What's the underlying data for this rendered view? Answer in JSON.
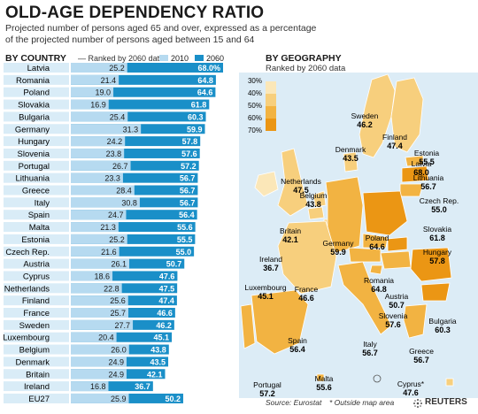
{
  "header": {
    "title": "OLD-AGE DEPENDENCY RATIO",
    "subtitle_line1": "Projected number of persons aged 65 and over, expressed as a percentage",
    "subtitle_line2": "of the projected number of persons aged between 15 and 64"
  },
  "country_section": {
    "heading": "BY COUNTRY",
    "rank_note": "Ranked by 2060 data",
    "legend_2010": "2010",
    "legend_2060": "2060"
  },
  "geo_section": {
    "heading": "BY GEOGRAPHY",
    "rank_note": "Ranked by 2060 data",
    "scale_labels": [
      "30%",
      "40%",
      "50%",
      "60%",
      "70%"
    ]
  },
  "footer": {
    "source": "Source: Eurostat",
    "outside_note": "* Outside map area",
    "brand": "REUTERS"
  },
  "colors": {
    "bar_2060": "#1a8fc8",
    "bar_2010": "#b6daf0",
    "row_bg": "#d9ecf7",
    "map_scale": [
      "#fbe7b8",
      "#f7cf7d",
      "#f2b342",
      "#eb9614"
    ]
  },
  "chart_data": {
    "type": "bar",
    "categories": [
      "Latvia",
      "Romania",
      "Poland",
      "Slovakia",
      "Bulgaria",
      "Germany",
      "Hungary",
      "Slovenia",
      "Portugal",
      "Lithuania",
      "Greece",
      "Italy",
      "Spain",
      "Malta",
      "Estonia",
      "Czech Rep.",
      "Austria",
      "Cyprus",
      "Netherlands",
      "Finland",
      "France",
      "Sweden",
      "Luxembourg",
      "Belgium",
      "Denmark",
      "Britain",
      "Ireland",
      "EU27"
    ],
    "series": [
      {
        "name": "2010",
        "values": [
          25.2,
          21.4,
          19.0,
          16.9,
          25.4,
          31.3,
          24.2,
          23.8,
          26.7,
          23.3,
          28.4,
          30.8,
          24.7,
          21.3,
          25.2,
          21.6,
          26.1,
          18.6,
          22.8,
          25.6,
          25.7,
          27.7,
          20.4,
          26.0,
          24.9,
          24.9,
          16.8,
          25.9
        ]
      },
      {
        "name": "2060",
        "values": [
          68.0,
          64.8,
          64.6,
          61.8,
          60.3,
          59.9,
          57.8,
          57.6,
          57.2,
          56.7,
          56.7,
          56.7,
          56.4,
          55.6,
          55.5,
          55.0,
          50.7,
          47.6,
          47.5,
          47.4,
          46.6,
          46.2,
          45.1,
          43.8,
          43.5,
          42.1,
          36.7,
          50.2
        ]
      }
    ],
    "value_labels_2060": [
      "68.0%",
      "64.8",
      "64.6",
      "61.8",
      "60.3",
      "59.9",
      "57.8",
      "57.6",
      "57.2",
      "56.7",
      "56.7",
      "56.7",
      "56.4",
      "55.6",
      "55.5",
      "55.0",
      "50.7",
      "47.6",
      "47.5",
      "47.4",
      "46.6",
      "46.2",
      "45.1",
      "43.8",
      "43.5",
      "42.1",
      "36.7",
      "50.2"
    ],
    "value_labels_2010": [
      "25.2",
      "21.4",
      "19.0",
      "16.9",
      "25.4",
      "31.3",
      "24.2",
      "23.8",
      "26.7",
      "23.3",
      "28.4",
      "30.8",
      "24.7",
      "21.3",
      "25.2",
      "21.6",
      "26.1",
      "18.6",
      "22.8",
      "25.6",
      "25.7",
      "27.7",
      "20.4",
      "26.0",
      "24.9",
      "24.9",
      "16.8",
      "25.9"
    ],
    "xlim": [
      0,
      68
    ]
  },
  "map_labels": [
    {
      "name": "Sweden",
      "value": "46.2"
    },
    {
      "name": "Finland",
      "value": "47.4"
    },
    {
      "name": "Estonia",
      "value": "55.5"
    },
    {
      "name": "Latvia",
      "value": "68.0"
    },
    {
      "name": "Lithuania",
      "value": "56.7"
    },
    {
      "name": "Denmark",
      "value": "43.5"
    },
    {
      "name": "Netherlands",
      "value": "47.5"
    },
    {
      "name": "Belgium",
      "value": "43.8"
    },
    {
      "name": "Britain",
      "value": "42.1"
    },
    {
      "name": "Ireland",
      "value": "36.7"
    },
    {
      "name": "Germany",
      "value": "59.9"
    },
    {
      "name": "Poland",
      "value": "64.6"
    },
    {
      "name": "Czech Rep.",
      "value": "55.0"
    },
    {
      "name": "Slovakia",
      "value": "61.8"
    },
    {
      "name": "Hungary",
      "value": "57.8"
    },
    {
      "name": "Luxembourg",
      "value": "45.1"
    },
    {
      "name": "France",
      "value": "46.6"
    },
    {
      "name": "Austria",
      "value": "50.7"
    },
    {
      "name": "Romania",
      "value": "64.8"
    },
    {
      "name": "Slovenia",
      "value": "57.6"
    },
    {
      "name": "Bulgaria",
      "value": "60.3"
    },
    {
      "name": "Spain",
      "value": "56.4"
    },
    {
      "name": "Italy",
      "value": "56.7"
    },
    {
      "name": "Greece",
      "value": "56.7"
    },
    {
      "name": "Portugal",
      "value": "57.2"
    },
    {
      "name": "Malta",
      "value": "55.6"
    },
    {
      "name": "Cyprus*",
      "value": "47.6"
    }
  ]
}
